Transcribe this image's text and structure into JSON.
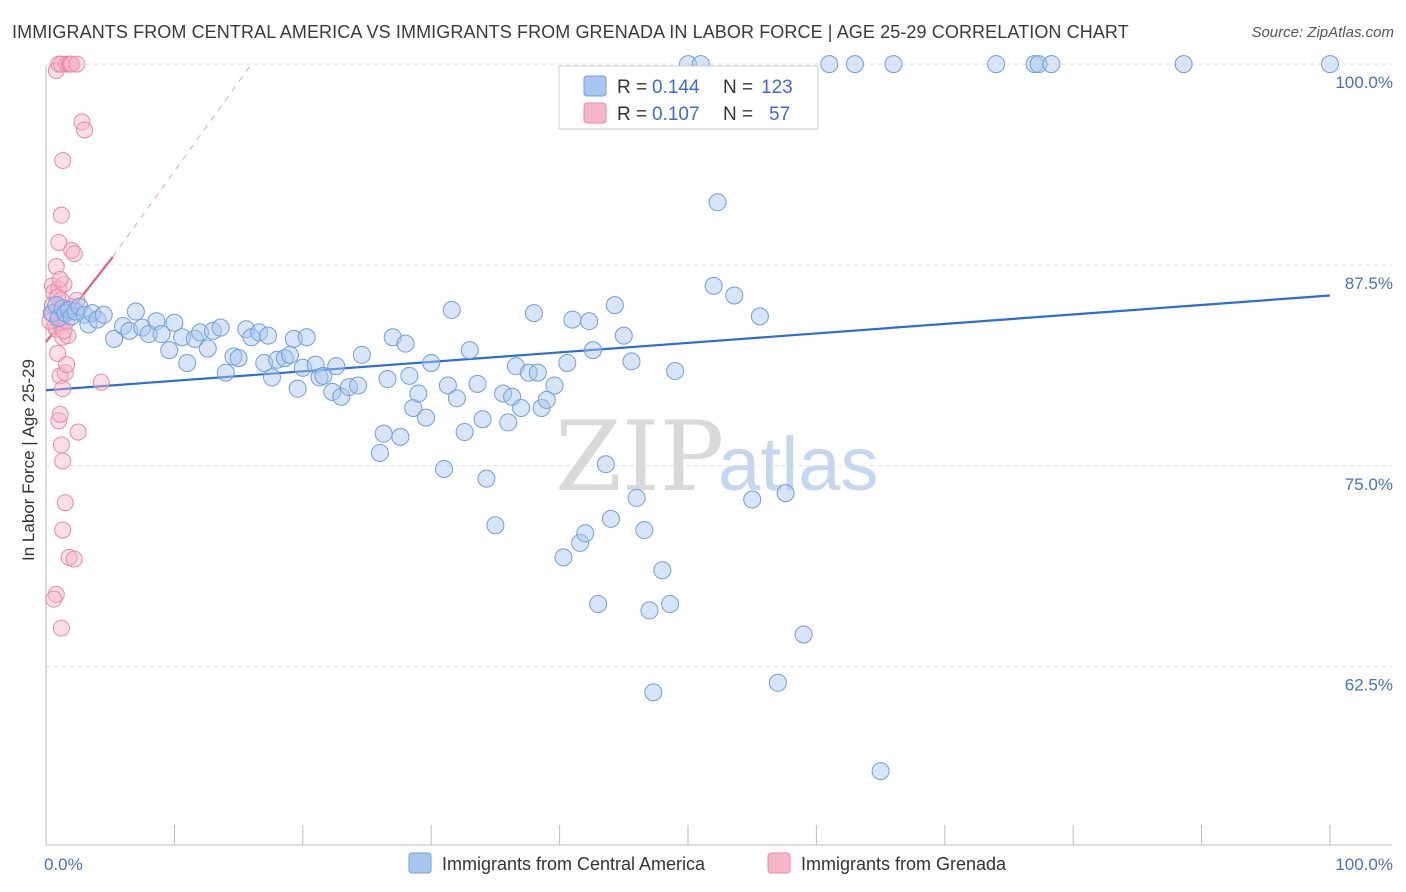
{
  "header": {
    "title": "IMMIGRANTS FROM CENTRAL AMERICA VS IMMIGRANTS FROM GRENADA IN LABOR FORCE | AGE 25-29 CORRELATION CHART",
    "source": "Source: ZipAtlas.com"
  },
  "watermark": {
    "zip": "ZIP",
    "atlas": "atlas"
  },
  "colors": {
    "blue_fill": "#a9c6f0",
    "blue_stroke": "#6f9ee0",
    "blue_line": "#2a6fd0",
    "pink_fill": "#f6b6c9",
    "pink_stroke": "#e98aa8",
    "pink_line": "#e0608a"
  },
  "legend": {
    "rows": [
      {
        "r_label": "R =",
        "r_value": "0.144",
        "n_label": "N =",
        "n_value": "123"
      },
      {
        "r_label": "R =",
        "r_value": "0.107",
        "n_label": "N =",
        "n_value": "57"
      }
    ]
  },
  "bottom_legend": [
    "Immigrants from Central America",
    "Immigrants from Grenada"
  ],
  "chart_data": {
    "type": "scatter",
    "title": "IMMIGRANTS FROM CENTRAL AMERICA VS IMMIGRANTS FROM GRENADA IN LABOR FORCE | AGE 25-29 CORRELATION CHART",
    "ylabel": "In Labor Force | Age 25-29",
    "xlabel": "",
    "x_tick_labels": [
      "0.0%",
      "100.0%"
    ],
    "y_tick_labels": [
      "62.5%",
      "75.0%",
      "87.5%",
      "100.0%"
    ],
    "y_ticks": [
      62.5,
      75.0,
      87.5,
      100.0
    ],
    "xlim": [
      0,
      100
    ],
    "ylim": [
      51.4,
      101.5
    ],
    "grid": true,
    "legend_placement": "top-center",
    "series": [
      {
        "name": "Immigrants from Central America",
        "color": "#a9c6f0",
        "trend": {
          "x": [
            0,
            100
          ],
          "y": [
            79.7,
            85.6
          ]
        },
        "points": [
          [
            0.5,
            84.5
          ],
          [
            0.8,
            85.0
          ],
          [
            1.0,
            84.2
          ],
          [
            1.3,
            84.8
          ],
          [
            1.5,
            84.5
          ],
          [
            1.8,
            84.7
          ],
          [
            2.0,
            84.3
          ],
          [
            2.3,
            84.6
          ],
          [
            2.6,
            84.9
          ],
          [
            3.0,
            84.4
          ],
          [
            3.3,
            83.8
          ],
          [
            3.6,
            84.5
          ],
          [
            4.0,
            84.1
          ],
          [
            4.5,
            84.4
          ],
          [
            5.3,
            82.9
          ],
          [
            6.0,
            83.7
          ],
          [
            6.5,
            83.4
          ],
          [
            7.0,
            84.6
          ],
          [
            7.5,
            83.6
          ],
          [
            8.0,
            83.2
          ],
          [
            8.6,
            84.0
          ],
          [
            9.0,
            83.2
          ],
          [
            9.6,
            82.2
          ],
          [
            10.0,
            83.9
          ],
          [
            10.6,
            83.0
          ],
          [
            11.0,
            81.4
          ],
          [
            11.6,
            82.9
          ],
          [
            12.0,
            83.3
          ],
          [
            12.6,
            82.3
          ],
          [
            13.0,
            83.4
          ],
          [
            13.6,
            83.6
          ],
          [
            14.0,
            80.8
          ],
          [
            14.6,
            81.8
          ],
          [
            15.0,
            81.7
          ],
          [
            15.6,
            83.5
          ],
          [
            16.0,
            83.0
          ],
          [
            16.6,
            83.3
          ],
          [
            17.0,
            81.4
          ],
          [
            17.3,
            83.1
          ],
          [
            17.6,
            80.5
          ],
          [
            18.0,
            81.6
          ],
          [
            18.6,
            81.7
          ],
          [
            19.0,
            81.9
          ],
          [
            19.3,
            82.9
          ],
          [
            19.6,
            79.8
          ],
          [
            20.0,
            81.1
          ],
          [
            20.3,
            83.0
          ],
          [
            21.0,
            81.3
          ],
          [
            21.3,
            80.5
          ],
          [
            21.6,
            80.6
          ],
          [
            22.3,
            79.6
          ],
          [
            22.6,
            81.2
          ],
          [
            23.0,
            79.3
          ],
          [
            23.6,
            79.9
          ],
          [
            24.3,
            80.0
          ],
          [
            24.6,
            81.9
          ],
          [
            26.0,
            75.8
          ],
          [
            26.3,
            77.0
          ],
          [
            26.6,
            80.4
          ],
          [
            27.0,
            83.0
          ],
          [
            27.6,
            76.8
          ],
          [
            28.0,
            82.6
          ],
          [
            28.3,
            80.6
          ],
          [
            28.6,
            78.6
          ],
          [
            29.0,
            79.5
          ],
          [
            29.6,
            78.0
          ],
          [
            30.0,
            81.4
          ],
          [
            31.0,
            74.8
          ],
          [
            31.3,
            80.0
          ],
          [
            31.6,
            84.7
          ],
          [
            32.0,
            79.2
          ],
          [
            32.6,
            77.1
          ],
          [
            33.0,
            82.2
          ],
          [
            33.6,
            80.1
          ],
          [
            34.0,
            77.9
          ],
          [
            34.3,
            74.2
          ],
          [
            35.0,
            71.3
          ],
          [
            35.6,
            79.5
          ],
          [
            36.0,
            77.7
          ],
          [
            36.3,
            79.3
          ],
          [
            36.6,
            81.2
          ],
          [
            37.0,
            78.6
          ],
          [
            37.6,
            80.8
          ],
          [
            38.0,
            84.5
          ],
          [
            38.3,
            80.8
          ],
          [
            38.6,
            78.6
          ],
          [
            39.0,
            79.1
          ],
          [
            39.6,
            80.0
          ],
          [
            40.3,
            69.3
          ],
          [
            40.6,
            81.4
          ],
          [
            41.0,
            84.1
          ],
          [
            41.6,
            70.2
          ],
          [
            42.0,
            70.8
          ],
          [
            42.3,
            84.0
          ],
          [
            42.6,
            82.2
          ],
          [
            43.0,
            66.4
          ],
          [
            43.6,
            75.1
          ],
          [
            44.0,
            71.7
          ],
          [
            44.3,
            85.0
          ],
          [
            45.0,
            83.1
          ],
          [
            45.6,
            81.5
          ],
          [
            46.0,
            73.0
          ],
          [
            46.6,
            71.0
          ],
          [
            47.0,
            66.0
          ],
          [
            47.3,
            60.9
          ],
          [
            48.0,
            68.5
          ],
          [
            48.6,
            66.4
          ],
          [
            49.0,
            80.9
          ],
          [
            50.0,
            100.0
          ],
          [
            51.0,
            100.0
          ],
          [
            52.0,
            86.2
          ],
          [
            52.3,
            91.4
          ],
          [
            53.6,
            85.6
          ],
          [
            55.0,
            72.9
          ],
          [
            55.6,
            84.3
          ],
          [
            57.0,
            61.5
          ],
          [
            57.6,
            73.3
          ],
          [
            59.0,
            64.5
          ],
          [
            61.0,
            100.0
          ],
          [
            63.0,
            100.0
          ],
          [
            65.0,
            56.0
          ],
          [
            66.0,
            100.0
          ],
          [
            74.0,
            100.0
          ],
          [
            77.0,
            100.0
          ],
          [
            77.3,
            100.0
          ],
          [
            78.3,
            100.0
          ],
          [
            88.6,
            100.0
          ],
          [
            100.0,
            100.0
          ]
        ]
      },
      {
        "name": "Immigrants from Grenada",
        "color": "#f6b6c9",
        "trend": {
          "x": [
            0,
            5.2
          ],
          "y": [
            82.7,
            88.0
          ]
        },
        "trend_dashed": {
          "x": [
            5.2,
            16.0
          ],
          "y": [
            88.0,
            100.0
          ]
        },
        "points": [
          [
            0.4,
            84.5
          ],
          [
            0.5,
            86.2
          ],
          [
            0.6,
            85.8
          ],
          [
            0.7,
            83.7
          ],
          [
            0.8,
            83.5
          ],
          [
            0.9,
            84.1
          ],
          [
            1.0,
            86.0
          ],
          [
            1.0,
            84.8
          ],
          [
            1.1,
            83.9
          ],
          [
            1.2,
            85.3
          ],
          [
            1.3,
            84.2
          ],
          [
            1.3,
            83.0
          ],
          [
            1.4,
            86.3
          ],
          [
            1.5,
            84.6
          ],
          [
            0.9,
            82.0
          ],
          [
            1.1,
            80.6
          ],
          [
            1.3,
            79.8
          ],
          [
            1.0,
            77.8
          ],
          [
            1.2,
            76.3
          ],
          [
            1.1,
            78.2
          ],
          [
            1.5,
            80.8
          ],
          [
            1.6,
            81.3
          ],
          [
            1.3,
            75.3
          ],
          [
            1.5,
            72.7
          ],
          [
            1.3,
            71.0
          ],
          [
            1.8,
            69.3
          ],
          [
            2.2,
            69.2
          ],
          [
            0.8,
            67.0
          ],
          [
            0.6,
            66.7
          ],
          [
            1.2,
            64.9
          ],
          [
            0.8,
            99.6
          ],
          [
            1.0,
            100.0
          ],
          [
            1.2,
            100.0
          ],
          [
            1.6,
            100.0
          ],
          [
            1.8,
            100.0
          ],
          [
            1.9,
            100.0
          ],
          [
            2.0,
            100.0
          ],
          [
            2.4,
            100.0
          ],
          [
            2.8,
            96.4
          ],
          [
            3.0,
            95.9
          ],
          [
            1.3,
            94.0
          ],
          [
            1.2,
            90.6
          ],
          [
            1.0,
            88.9
          ],
          [
            2.0,
            88.4
          ],
          [
            2.2,
            88.2
          ],
          [
            0.8,
            87.4
          ],
          [
            1.1,
            86.6
          ],
          [
            2.4,
            85.3
          ],
          [
            4.3,
            80.2
          ],
          [
            2.5,
            77.1
          ],
          [
            1.7,
            83.1
          ],
          [
            0.3,
            84.0
          ],
          [
            0.5,
            85.0
          ],
          [
            0.9,
            85.5
          ],
          [
            1.4,
            83.4
          ],
          [
            1.6,
            84.0
          ],
          [
            2.0,
            84.9
          ]
        ]
      }
    ]
  }
}
